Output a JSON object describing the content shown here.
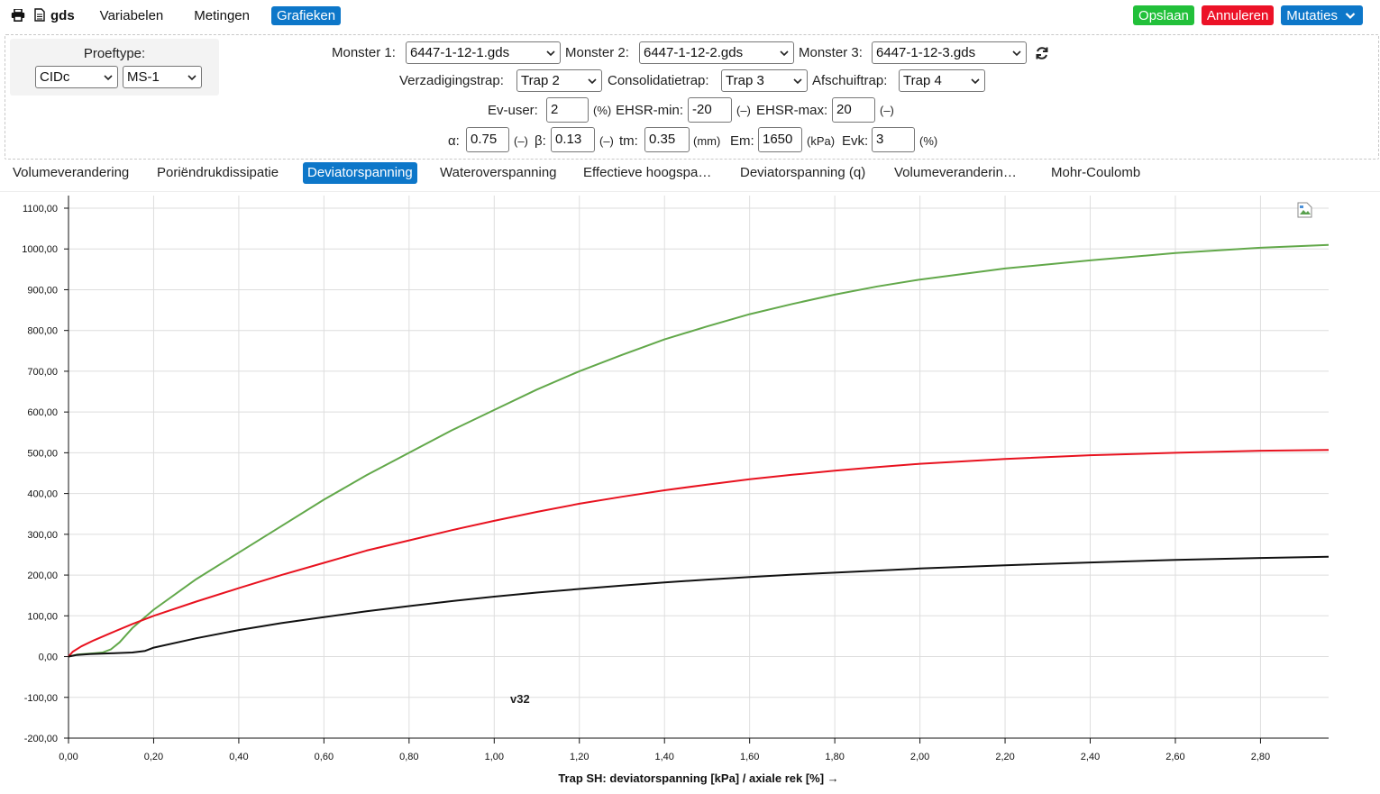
{
  "header": {
    "print_icon": "print-icon",
    "brand": "gds",
    "brand_icon": "document-icon",
    "nav": [
      {
        "label": "Variabelen",
        "active": false
      },
      {
        "label": "Metingen",
        "active": false
      },
      {
        "label": "Grafieken",
        "active": true
      }
    ],
    "actions": {
      "save": "Opslaan",
      "cancel": "Annuleren",
      "mutations": "Mutaties",
      "save_color": "#22c03a",
      "cancel_color": "#ec1227",
      "mutations_color": "#0d77c9"
    }
  },
  "params": {
    "proeftype_label": "Proeftype:",
    "proeftype_value": "CIDc",
    "proeftype_variant": "MS-1",
    "monster1_label": "Monster 1:",
    "monster1_value": "6447-1-12-1.gds",
    "monster2_label": "Monster 2:",
    "monster2_value": "6447-1-12-2.gds",
    "monster3_label": "Monster 3:",
    "monster3_value": "6447-1-12-3.gds",
    "verzadiging_label": "Verzadigingstrap:",
    "verzadiging_value": "Trap 2",
    "consolidatie_label": "Consolidatietrap:",
    "consolidatie_value": "Trap 3",
    "afschuif_label": "Afschuiftrap:",
    "afschuif_value": "Trap 4",
    "ev_user_label": "Ev-user:",
    "ev_user_value": "2",
    "ev_user_unit": "(%)",
    "ehsr_min_label": "EHSR-min:",
    "ehsr_min_value": "-20",
    "ehsr_min_unit": "(–)",
    "ehsr_max_label": "EHSR-max:",
    "ehsr_max_value": "20",
    "ehsr_max_unit": "(–)",
    "alpha_label": "α:",
    "alpha_value": "0.75",
    "alpha_unit": "(–)",
    "beta_label": "β:",
    "beta_value": "0.13",
    "beta_unit": "(–)",
    "tm_label": "tm:",
    "tm_value": "0.35",
    "tm_unit": "(mm)",
    "em_label": "Em:",
    "em_value": "1650",
    "em_unit": "(kPa)",
    "evk_label": "Evk:",
    "evk_value": "3",
    "evk_unit": "(%)"
  },
  "tabs": [
    {
      "label": "Volumeverandering",
      "active": false
    },
    {
      "label": "Poriëndrukdissipatie",
      "active": false
    },
    {
      "label": "Deviatorspanning",
      "active": true
    },
    {
      "label": "Wateroverspanning",
      "active": false
    },
    {
      "label": "Effectieve hoogspa…",
      "active": false
    },
    {
      "label": "Deviatorspanning (q)",
      "active": false
    },
    {
      "label": "Volumeveranderin…",
      "active": false
    },
    {
      "label": "Mohr-Coulomb",
      "active": false
    }
  ],
  "chart_data": {
    "type": "line",
    "xlabel": "Trap SH: deviatorspanning [kPa] / axiale rek [%] →",
    "ylabel": "",
    "xlim": [
      0,
      2.96
    ],
    "ylim": [
      -200,
      1100
    ],
    "x_ticks": [
      "0,00",
      "0,20",
      "0,40",
      "0,60",
      "0,80",
      "1,00",
      "1,20",
      "1,40",
      "1,60",
      "1,80",
      "2,00",
      "2,20",
      "2,40",
      "2,60",
      "2,80"
    ],
    "y_ticks": [
      "-200,00",
      "-100,00",
      "0,00",
      "100,00",
      "200,00",
      "300,00",
      "400,00",
      "500,00",
      "600,00",
      "700,00",
      "800,00",
      "900,00",
      "1000,00",
      "1100,00"
    ],
    "grid": true,
    "annotation": "v32",
    "series": [
      {
        "color": "#62a84a",
        "x": [
          0,
          0.02,
          0.06,
          0.08,
          0.1,
          0.12,
          0.15,
          0.2,
          0.3,
          0.4,
          0.5,
          0.6,
          0.7,
          0.8,
          0.9,
          1.0,
          1.1,
          1.2,
          1.3,
          1.4,
          1.5,
          1.6,
          1.7,
          1.8,
          1.9,
          2.0,
          2.2,
          2.4,
          2.6,
          2.8,
          2.96
        ],
        "values": [
          0,
          5,
          8,
          10,
          18,
          35,
          70,
          115,
          190,
          255,
          320,
          385,
          445,
          500,
          555,
          605,
          655,
          700,
          740,
          778,
          810,
          840,
          865,
          888,
          908,
          925,
          952,
          972,
          990,
          1003,
          1010
        ]
      },
      {
        "color": "#e8121f",
        "x": [
          0,
          0.01,
          0.03,
          0.06,
          0.1,
          0.15,
          0.2,
          0.3,
          0.4,
          0.5,
          0.6,
          0.7,
          0.8,
          0.9,
          1.0,
          1.1,
          1.2,
          1.3,
          1.4,
          1.5,
          1.6,
          1.7,
          1.8,
          1.9,
          2.0,
          2.2,
          2.4,
          2.6,
          2.8,
          2.96
        ],
        "values": [
          0,
          12,
          25,
          40,
          58,
          80,
          100,
          135,
          168,
          200,
          230,
          260,
          285,
          310,
          333,
          355,
          375,
          392,
          408,
          422,
          435,
          446,
          456,
          465,
          473,
          485,
          494,
          500,
          505,
          507
        ]
      },
      {
        "color": "#111111",
        "x": [
          0,
          0.02,
          0.05,
          0.1,
          0.15,
          0.18,
          0.2,
          0.3,
          0.4,
          0.5,
          0.6,
          0.7,
          0.8,
          0.9,
          1.0,
          1.1,
          1.2,
          1.3,
          1.4,
          1.5,
          1.6,
          1.7,
          1.8,
          1.9,
          2.0,
          2.2,
          2.4,
          2.6,
          2.8,
          2.96
        ],
        "values": [
          0,
          4,
          6,
          8,
          10,
          14,
          22,
          45,
          65,
          82,
          97,
          111,
          124,
          136,
          147,
          157,
          166,
          174,
          182,
          189,
          195,
          201,
          206,
          211,
          216,
          224,
          231,
          237,
          242,
          245
        ]
      }
    ]
  }
}
